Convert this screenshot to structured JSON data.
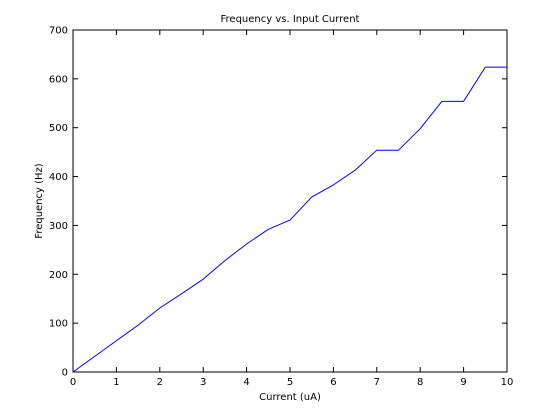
{
  "chart_data": {
    "type": "line",
    "title": "Frequency vs. Input Current",
    "xlabel": "Current (uA)",
    "ylabel": "Frequency (Hz)",
    "xlim": [
      0,
      10
    ],
    "ylim": [
      0,
      700
    ],
    "xticks": [
      0,
      1,
      2,
      3,
      4,
      5,
      6,
      7,
      8,
      9,
      10
    ],
    "yticks": [
      0,
      100,
      200,
      300,
      400,
      500,
      600,
      700
    ],
    "grid": false,
    "legend": "none",
    "series": [
      {
        "color": "#0000ff",
        "x": [
          0,
          0.5,
          1,
          1.5,
          2,
          2.5,
          3,
          3.5,
          4,
          4.5,
          5,
          5.5,
          6,
          6.5,
          7,
          7.5,
          8,
          8.5,
          9,
          9.5,
          10
        ],
        "y": [
          0,
          32,
          64,
          96,
          131,
          160,
          190,
          228,
          262,
          292,
          311,
          358,
          383,
          413,
          454,
          454,
          498,
          554,
          554,
          624,
          624
        ]
      }
    ]
  }
}
